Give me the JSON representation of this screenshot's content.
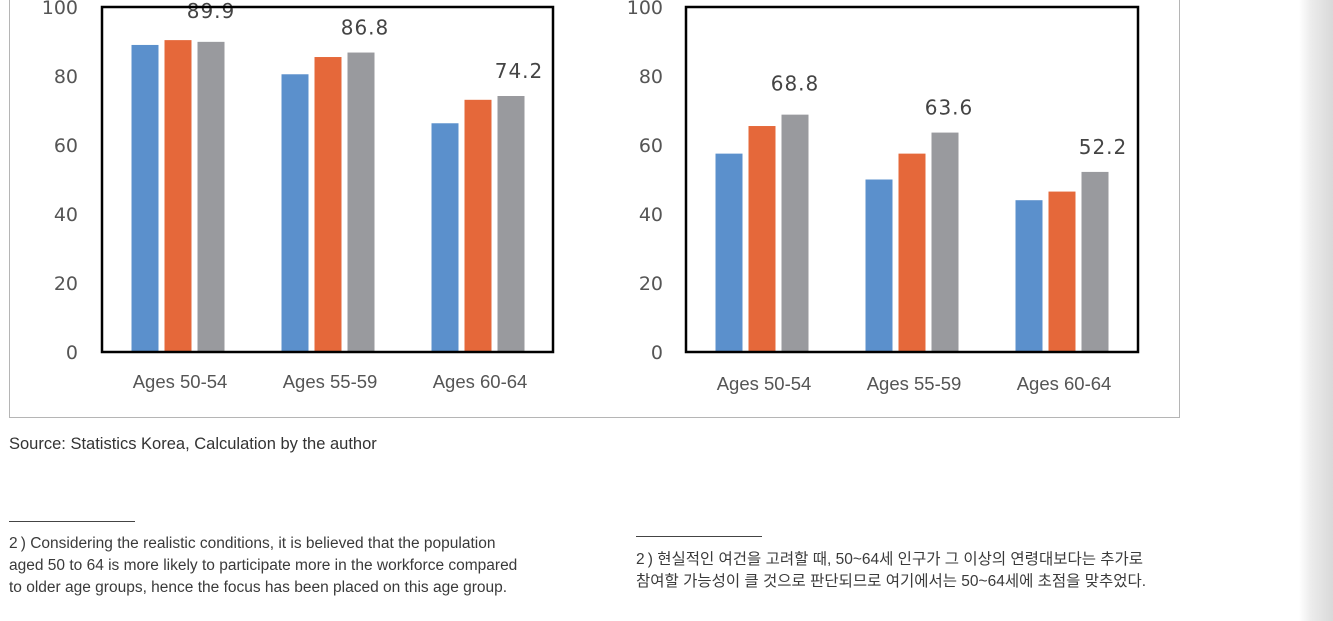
{
  "chart_data": [
    {
      "type": "bar",
      "categories": [
        "Ages 50-54",
        "Ages 55-59",
        "Ages 60-64"
      ],
      "series": [
        {
          "values": [
            89.0,
            80.5,
            66.3
          ],
          "color": "#5b90cc"
        },
        {
          "values": [
            90.4,
            85.5,
            73.1
          ],
          "color": "#e5683a"
        },
        {
          "values": [
            89.9,
            86.8,
            74.2
          ],
          "color": "#999a9e"
        }
      ],
      "data_labels": [
        "89.9",
        "86.8",
        "74.2"
      ],
      "ylim": [
        0,
        100
      ],
      "yticks": [
        "0",
        "20",
        "40",
        "60",
        "80",
        "100"
      ]
    },
    {
      "type": "bar",
      "categories": [
        "Ages 50-54",
        "Ages 55-59",
        "Ages 60-64"
      ],
      "series": [
        {
          "values": [
            57.5,
            50.0,
            44.0
          ],
          "color": "#5b90cc"
        },
        {
          "values": [
            65.5,
            57.5,
            46.5
          ],
          "color": "#e5683a"
        },
        {
          "values": [
            68.8,
            63.6,
            52.2
          ],
          "color": "#999a9e"
        }
      ],
      "data_labels": [
        "68.8",
        "63.6",
        "52.2"
      ],
      "ylim": [
        0,
        100
      ],
      "yticks": [
        "0",
        "20",
        "40",
        "60",
        "80",
        "100"
      ]
    }
  ],
  "source": "Source: Statistics Korea, Calculation by the author",
  "footnote_en": [
    "2 ) Considering the realistic conditions, it is believed that the population",
    "aged 50 to 64 is more likely to participate more in the workforce compared",
    "to older age groups, hence the focus has been placed on this age group."
  ],
  "footnote_ko": [
    "2 ) 현실적인 여건을 고려할 때, 50~64세 인구가 그 이상의 연령대보다는 추가로",
    "참여할 가능성이 클 것으로 판단되므로 여기에서는 50~64세에 초점을 맞추었다."
  ]
}
